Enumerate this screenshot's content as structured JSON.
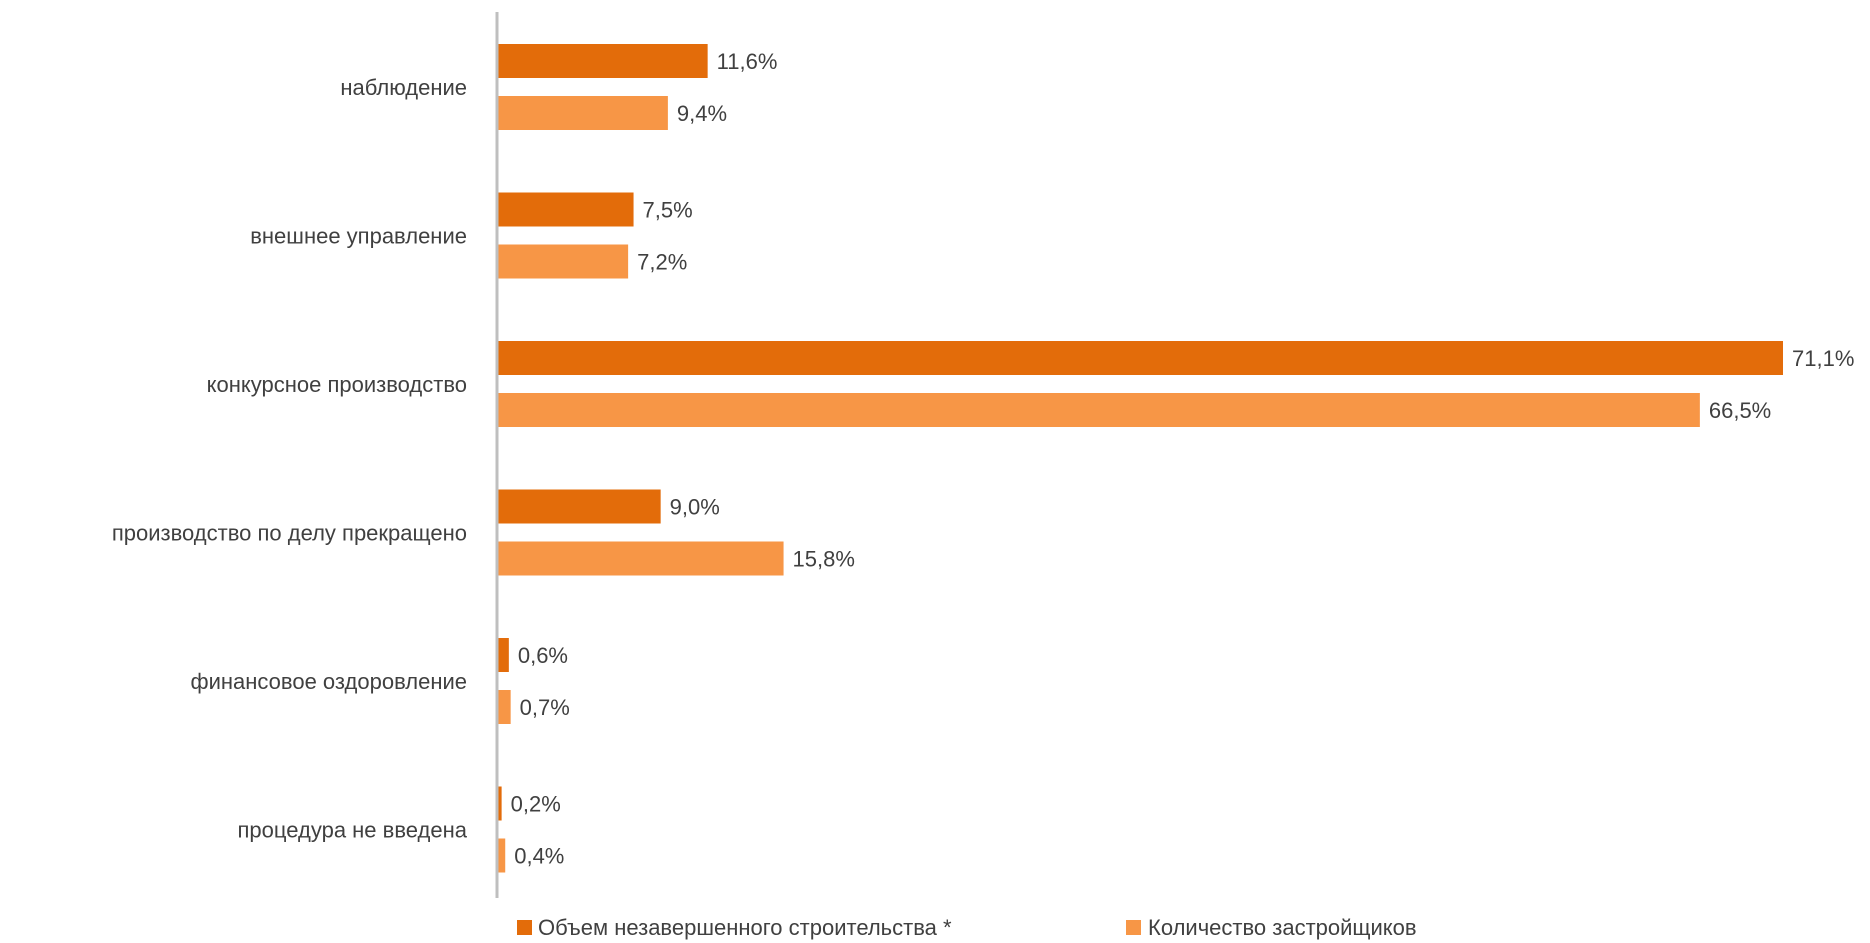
{
  "chart_data": {
    "type": "bar",
    "orientation": "horizontal",
    "categories": [
      "наблюдение",
      "внешнее управление",
      "конкурсное производство",
      "производство по делу прекращено",
      "финансовое оздоровление",
      "процедура не введена"
    ],
    "series": [
      {
        "name": "Объем незавершенного строительства *",
        "color": "#E36C0A",
        "values": [
          11.6,
          7.5,
          71.1,
          9.0,
          0.6,
          0.2
        ],
        "labels": [
          "11,6%",
          "7,5%",
          "71,1%",
          "9,0%",
          "0,6%",
          "0,2%"
        ]
      },
      {
        "name": "Количество застройщиков",
        "color": "#F79646",
        "values": [
          9.4,
          7.2,
          66.5,
          15.8,
          0.7,
          0.4
        ],
        "labels": [
          "9,4%",
          "7,2%",
          "66,5%",
          "15,8%",
          "0,7%",
          "0,4%"
        ]
      }
    ],
    "unit": "%",
    "xlim": [
      0,
      71.1
    ],
    "grid": false,
    "legend_position": "bottom"
  },
  "colors": {
    "axis": "#BFBFBF",
    "text": "#404040"
  }
}
